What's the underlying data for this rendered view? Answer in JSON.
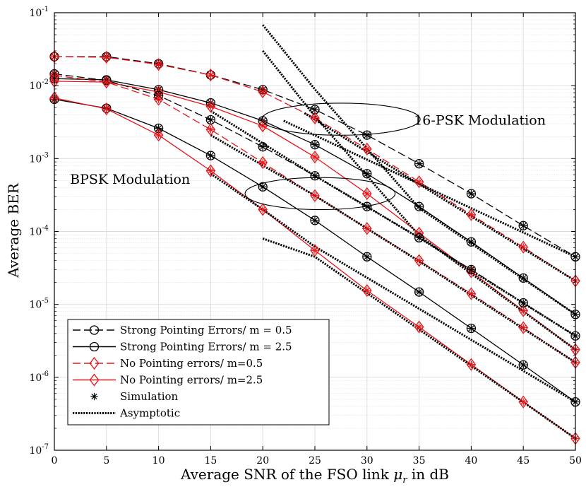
{
  "chart_data": {
    "type": "line",
    "title": "",
    "xlabel": "Average SNR of the FSO link μr in dB",
    "ylabel": "Average BER",
    "xlim": [
      0,
      50
    ],
    "ylim_log10": [
      -7,
      -1
    ],
    "y_scale": "log",
    "grid": true,
    "minor_grid": true,
    "legend_position": "bottom-left",
    "x_ticks": [
      0,
      5,
      10,
      15,
      20,
      25,
      30,
      35,
      40,
      45,
      50
    ],
    "x_tick_labels": [
      "0",
      "5",
      "10",
      "15",
      "20",
      "25",
      "30",
      "35",
      "40",
      "45",
      "50"
    ],
    "y_ticks_exponent": [
      -7,
      -6,
      -5,
      -4,
      -3,
      -2,
      -1
    ],
    "y_tick_base": "10",
    "annotations": [
      {
        "text": "16-PSK Modulation",
        "x": 34.5,
        "y": 0.0029
      },
      {
        "text": "BPSK Modulation",
        "x": 1.5,
        "y": 0.00045
      }
    ],
    "ellipses": [
      {
        "name": "psk16-group",
        "cx": 27.5,
        "cy_log10": -2.46,
        "rx": 7.6,
        "ry_log10": 0.22
      },
      {
        "name": "bpsk-group",
        "cx": 25.5,
        "cy_log10": -3.48,
        "rx": 7.2,
        "ry_log10": 0.22
      }
    ],
    "legend": [
      {
        "label": "Strong Pointing Errors/ m = 0.5",
        "color": "#000000",
        "dash": "dashed",
        "marker": "circle"
      },
      {
        "label": "Strong Pointing Errors/ m = 2.5",
        "color": "#000000",
        "dash": "solid",
        "marker": "circle"
      },
      {
        "label": "No Pointing errors/ m=0.5",
        "color": "#e8151a",
        "dash": "dashed",
        "marker": "diamond"
      },
      {
        "label": "No Pointing errors/ m=2.5",
        "color": "#e8151a",
        "dash": "solid",
        "marker": "diamond"
      },
      {
        "label": "Simulation",
        "color": "#000000",
        "dash": "none",
        "marker": "asterisk"
      },
      {
        "label": "Asymptotic",
        "color": "#000000",
        "dash": "dotted",
        "marker": "none"
      }
    ],
    "x": [
      0,
      5,
      10,
      15,
      20,
      25,
      30,
      35,
      40,
      45,
      50
    ],
    "series": [
      {
        "name": "16PSK Strong PE m=0.5",
        "color": "#000000",
        "dash": "dashed",
        "marker": "circle",
        "values": [
          0.025,
          0.025,
          0.02,
          0.014,
          0.0088,
          0.0047,
          0.0021,
          0.00085,
          0.00033,
          0.00012,
          4.5e-05
        ]
      },
      {
        "name": "16PSK Strong PE m=2.5",
        "color": "#000000",
        "dash": "solid",
        "marker": "circle",
        "values": [
          0.0125,
          0.012,
          0.0088,
          0.0058,
          0.0033,
          0.00155,
          0.00062,
          0.00022,
          7.2e-05,
          2.3e-05,
          7.3e-06
        ]
      },
      {
        "name": "16PSK No PE m=0.5",
        "color": "#e8151a",
        "dash": "dashed",
        "marker": "diamond",
        "values": [
          0.025,
          0.0245,
          0.0195,
          0.014,
          0.0082,
          0.0036,
          0.00135,
          0.00048,
          0.00017,
          6.1e-05,
          2.1e-05
        ]
      },
      {
        "name": "16PSK No PE m=2.5",
        "color": "#e8151a",
        "dash": "solid",
        "marker": "diamond",
        "values": [
          0.0115,
          0.0112,
          0.0082,
          0.0052,
          0.0028,
          0.00105,
          0.00033,
          9.5e-05,
          2.8e-05,
          8.2e-06,
          2.4e-06
        ]
      },
      {
        "name": "BPSK Strong PE m=0.5",
        "color": "#000000",
        "dash": "dashed",
        "marker": "circle",
        "values": [
          0.0145,
          0.0118,
          0.0073,
          0.0034,
          0.00145,
          0.00058,
          0.00022,
          8.2e-05,
          3e-05,
          1.05e-05,
          3.7e-06
        ]
      },
      {
        "name": "BPSK Strong PE m=2.5",
        "color": "#000000",
        "dash": "solid",
        "marker": "circle",
        "values": [
          0.0065,
          0.0049,
          0.0026,
          0.0011,
          0.00041,
          0.000142,
          4.5e-05,
          1.48e-05,
          4.7e-06,
          1.48e-06,
          4.6e-07
        ]
      },
      {
        "name": "BPSK No PE m=0.5",
        "color": "#e8151a",
        "dash": "dashed",
        "marker": "diamond",
        "values": [
          0.0138,
          0.0112,
          0.0065,
          0.0025,
          0.00088,
          0.00031,
          0.00011,
          4e-05,
          1.4e-05,
          4.8e-06,
          1.6e-06
        ]
      },
      {
        "name": "BPSK No PE m=2.5",
        "color": "#e8151a",
        "dash": "solid",
        "marker": "diamond",
        "values": [
          0.0068,
          0.0048,
          0.0021,
          0.00068,
          0.0002,
          5.5e-05,
          1.55e-05,
          4.9e-06,
          1.5e-06,
          4.6e-07,
          1.45e-07
        ]
      }
    ],
    "asymptotes": [
      {
        "name": "asym-16psk-spe-m05",
        "points": [
          [
            22,
            0.0033
          ],
          [
            50,
            4.5e-05
          ]
        ]
      },
      {
        "name": "asym-16psk-nope-m05",
        "points": [
          [
            24,
            0.0042
          ],
          [
            50,
            2.1e-05
          ]
        ]
      },
      {
        "name": "asym-16psk-spe-m25",
        "points": [
          [
            20,
            0.068
          ],
          [
            25,
            0.0089
          ],
          [
            35,
            0.00021
          ],
          [
            50,
            7.3e-06
          ]
        ]
      },
      {
        "name": "asym-16psk-nope-m25",
        "points": [
          [
            20,
            0.03
          ],
          [
            25,
            0.0038
          ],
          [
            35,
            8.8e-05
          ],
          [
            50,
            2.4e-06
          ]
        ]
      },
      {
        "name": "asym-bpsk-spe-m05",
        "points": [
          [
            15,
            0.0045
          ],
          [
            25,
            0.00058
          ],
          [
            35,
            8.2e-05
          ],
          [
            50,
            3.7e-06
          ]
        ]
      },
      {
        "name": "asym-bpsk-nope-m05",
        "points": [
          [
            15,
            0.0021
          ],
          [
            25,
            0.00031
          ],
          [
            35,
            3.9e-05
          ],
          [
            50,
            1.6e-06
          ]
        ]
      },
      {
        "name": "asym-bpsk-spe-m25",
        "points": [
          [
            15,
            0.00062
          ],
          [
            20,
            0.0002
          ],
          [
            25,
            6.2e-05
          ],
          [
            50,
            4.6e-07
          ]
        ]
      },
      {
        "name": "asym-bpsk-nope-m25",
        "points": [
          [
            20,
            8e-05
          ],
          [
            25,
            4.5e-05
          ],
          [
            50,
            1.45e-07
          ]
        ]
      }
    ]
  }
}
